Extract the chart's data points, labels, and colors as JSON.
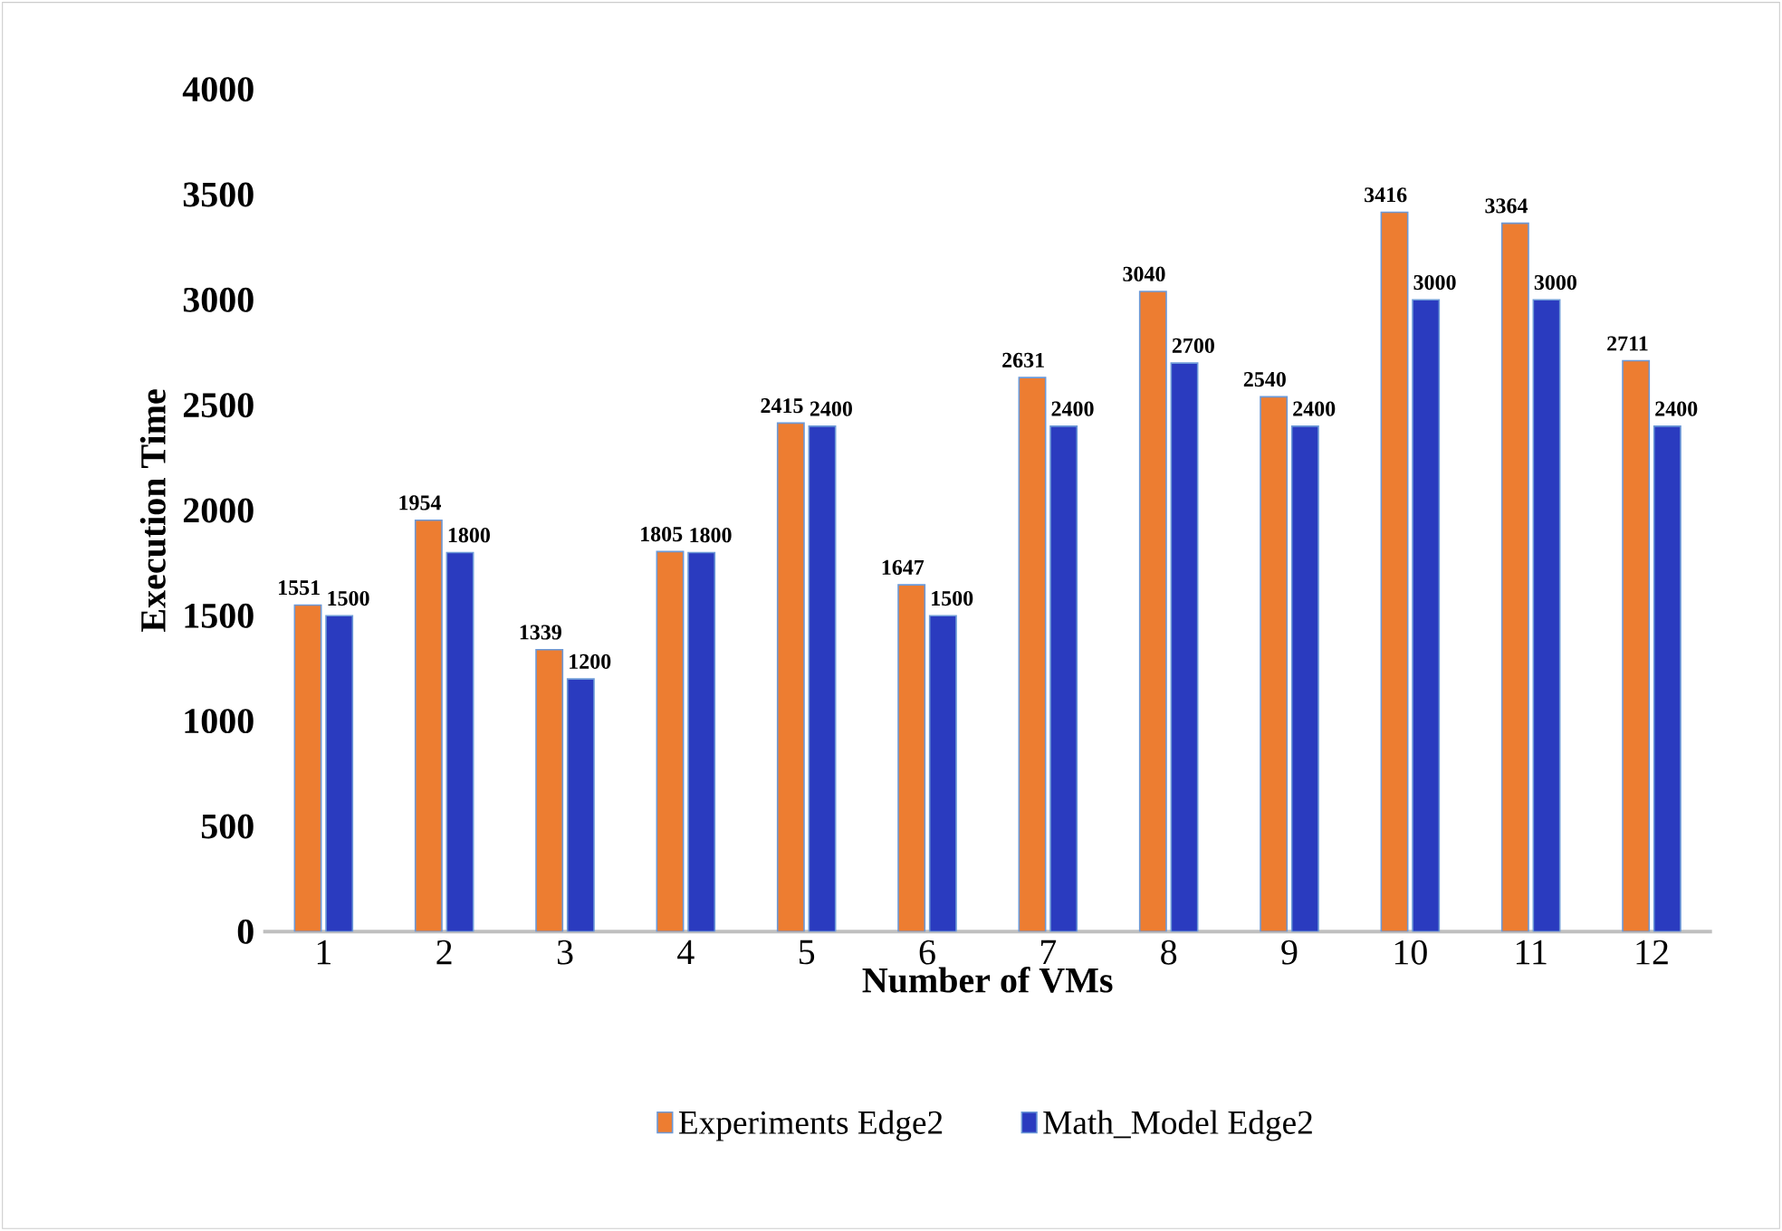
{
  "chart_data": {
    "type": "bar",
    "xlabel": "Number of VMs",
    "ylabel": "Execution Time",
    "categories": [
      "1",
      "2",
      "3",
      "4",
      "5",
      "6",
      "7",
      "8",
      "9",
      "10",
      "11",
      "12"
    ],
    "series": [
      {
        "name": "Experiments Edge2",
        "color": "#ed7d31",
        "values": [
          1551,
          1954,
          1339,
          1805,
          2415,
          1647,
          2631,
          3040,
          2540,
          3416,
          3364,
          2711
        ]
      },
      {
        "name": "Math_Model Edge2",
        "color": "#2a3bbf",
        "values": [
          1500,
          1800,
          1200,
          1800,
          2400,
          1500,
          2400,
          2700,
          2400,
          3000,
          3000,
          2400
        ]
      }
    ],
    "ylim": [
      0,
      4000
    ],
    "yticks": [
      0,
      500,
      1000,
      1500,
      2000,
      2500,
      3000,
      3500,
      4000
    ],
    "data_labels": true,
    "legend": "bottom"
  }
}
